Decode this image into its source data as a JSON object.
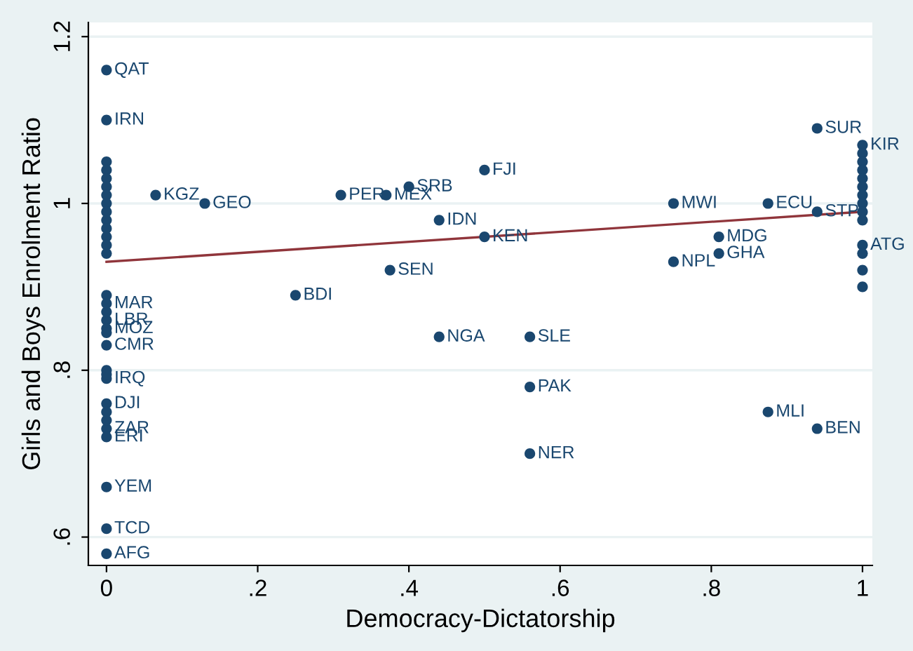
{
  "chart_data": {
    "type": "scatter",
    "xlabel": "Democracy-Dictatorship",
    "ylabel": "Girls and Boys Enrolment Ratio",
    "xlim": [
      -0.024,
      1.013
    ],
    "ylim": [
      0.566,
      1.217
    ],
    "xticks": [
      {
        "value": 0,
        "label": "0"
      },
      {
        "value": 0.2,
        "label": ".2"
      },
      {
        "value": 0.4,
        "label": ".4"
      },
      {
        "value": 0.6,
        "label": ".6"
      },
      {
        "value": 0.8,
        "label": ".8"
      },
      {
        "value": 1,
        "label": "1"
      }
    ],
    "yticks": [
      {
        "value": 0.6,
        "label": ".6"
      },
      {
        "value": 0.8,
        "label": ".8"
      },
      {
        "value": 1,
        "label": "1"
      },
      {
        "value": 1.2,
        "label": "1.2"
      }
    ],
    "grid": "y",
    "marker": "circle",
    "legend": false,
    "series": [
      {
        "color": "#1a476f",
        "x": [
          0,
          0,
          0,
          0,
          0,
          0,
          0,
          0,
          0,
          0,
          0,
          0,
          0,
          0,
          0,
          0,
          0,
          0,
          0,
          0,
          0,
          0,
          0,
          0,
          0,
          0,
          0,
          0,
          0,
          0,
          0,
          0,
          0.065,
          0.13,
          0.31,
          0.37,
          0.4,
          0.5,
          0.44,
          0.5,
          0.375,
          0.25,
          0.44,
          0.56,
          0.56,
          0.56,
          0.75,
          0.875,
          0.94,
          0.94,
          0.81,
          0.81,
          0.75,
          0.875,
          0.94,
          1,
          1,
          1,
          1,
          1,
          1,
          1,
          1,
          1,
          1,
          1,
          1,
          1,
          1
        ],
        "values": [
          1.16,
          1.1,
          1.05,
          1.04,
          1.03,
          1.02,
          1.01,
          1.0,
          0.99,
          0.98,
          0.97,
          0.96,
          0.95,
          0.94,
          0.89,
          0.88,
          0.86,
          0.85,
          0.83,
          0.8,
          0.79,
          0.76,
          0.75,
          0.73,
          0.72,
          0.66,
          0.61,
          0.58,
          0.87,
          0.74,
          0.845,
          0.795,
          1.01,
          1.0,
          1.01,
          1.01,
          1.02,
          1.04,
          0.98,
          0.96,
          0.92,
          0.89,
          0.84,
          0.84,
          0.78,
          0.7,
          1.0,
          1.0,
          0.99,
          1.09,
          0.96,
          0.94,
          0.93,
          0.75,
          0.73,
          1.07,
          1.06,
          1.05,
          1.04,
          1.03,
          1.02,
          1.01,
          1.0,
          0.99,
          0.98,
          0.95,
          0.94,
          0.92,
          0.9
        ],
        "value_labels": [
          "QAT",
          "IRN",
          null,
          null,
          null,
          null,
          null,
          null,
          null,
          null,
          null,
          null,
          null,
          null,
          null,
          "MAR",
          "LBR",
          "MOZ",
          "CMR",
          null,
          "IRQ",
          "DJI",
          null,
          "ZAR",
          "ERI",
          "YEM",
          "TCD",
          "AFG",
          null,
          null,
          null,
          null,
          "KGZ",
          "GEO",
          "PER",
          "MEX",
          "SRB",
          "FJI",
          "IDN",
          "KEN",
          "SEN",
          "BDI",
          "NGA",
          "SLE",
          "PAK",
          "NER",
          "MWI",
          "ECU",
          "STP",
          "SUR",
          "MDG",
          "GHA",
          "NPL",
          "MLI",
          "BEN",
          "KIR",
          null,
          null,
          null,
          null,
          null,
          null,
          null,
          null,
          null,
          "ATG",
          null,
          null,
          null
        ]
      },
      {
        "type": "line",
        "color": "#90353b",
        "marker": "none",
        "x": [
          0,
          1
        ],
        "values": [
          0.93,
          0.99
        ]
      }
    ]
  }
}
